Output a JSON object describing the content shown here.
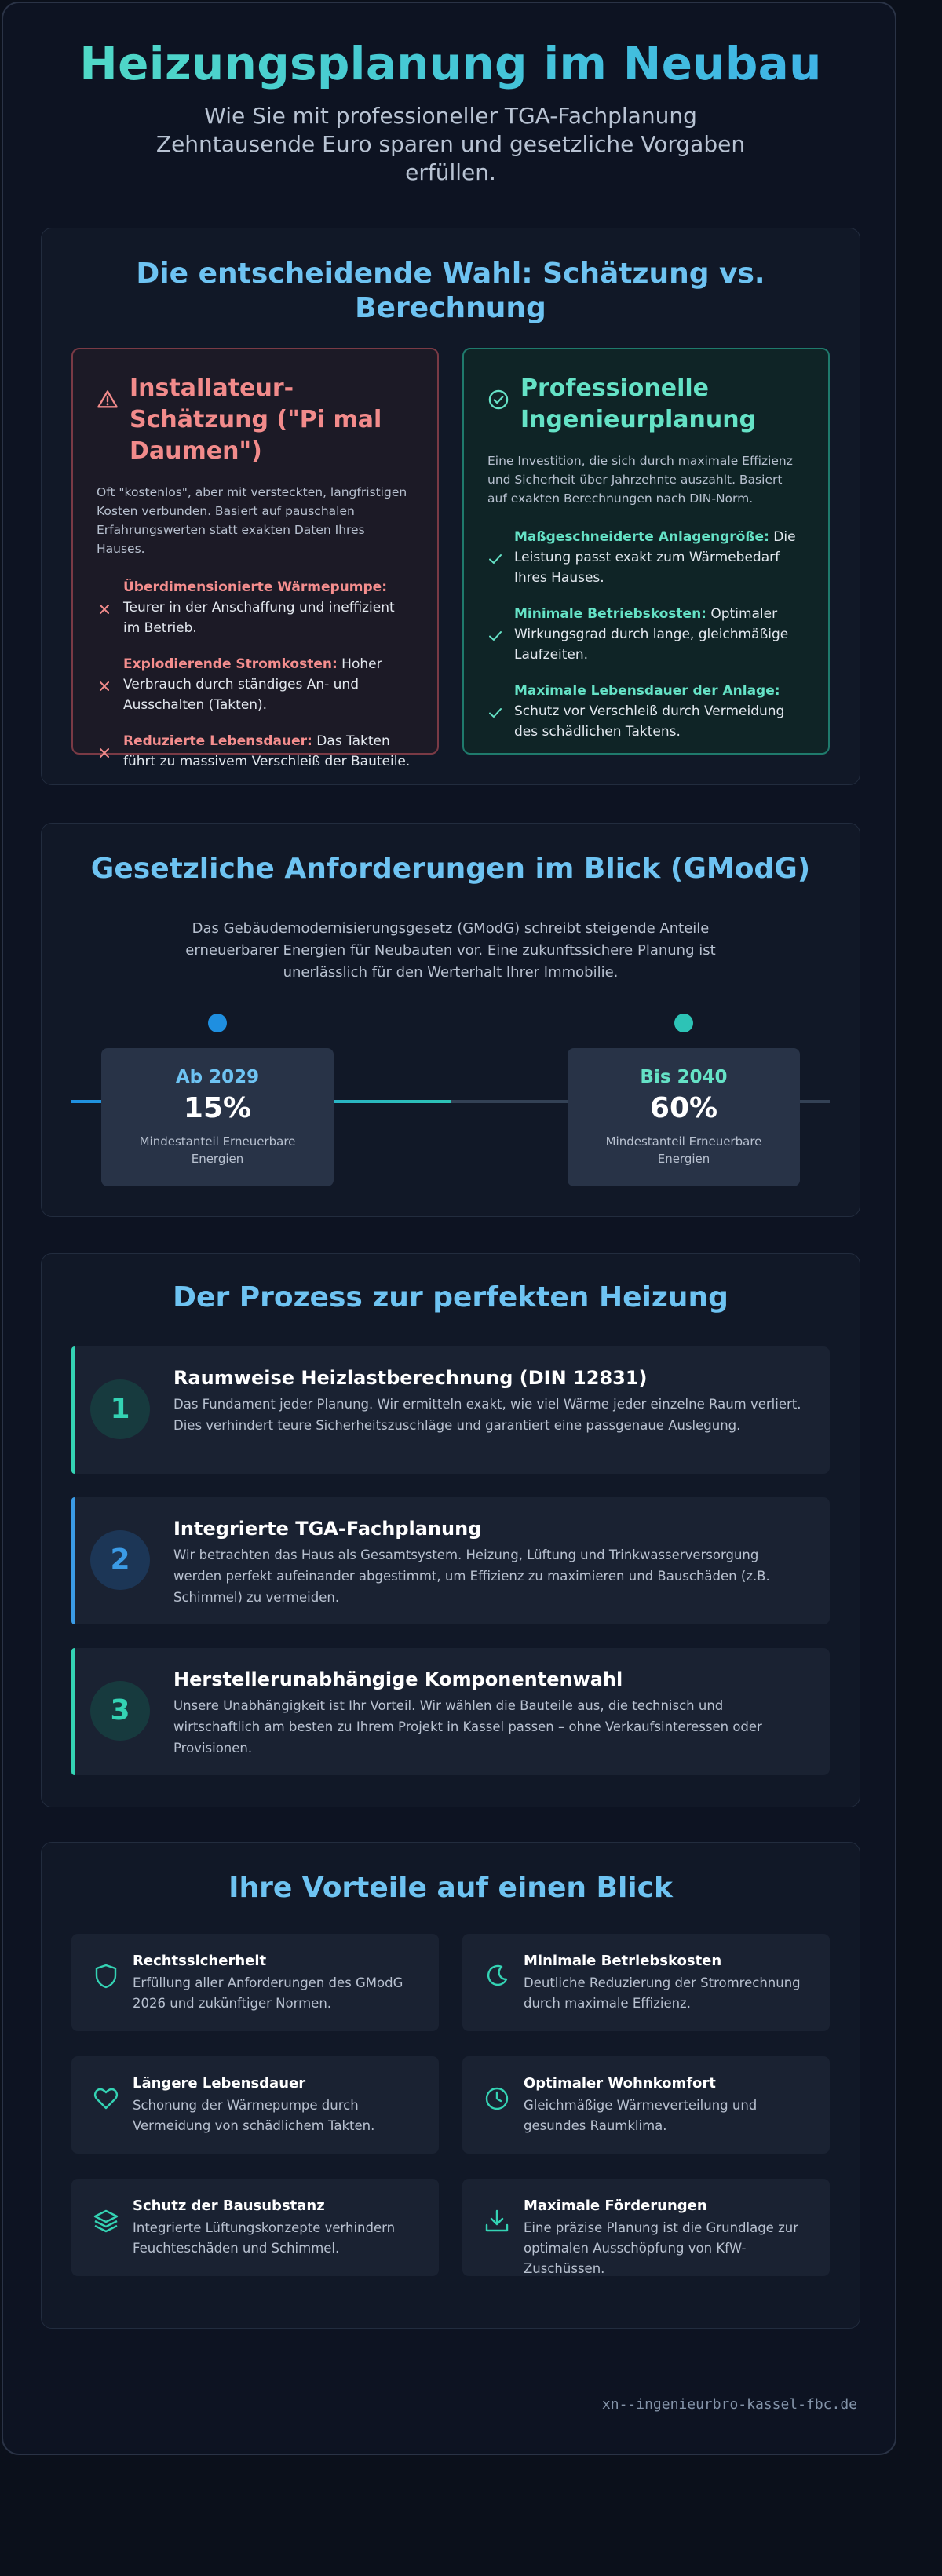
{
  "hero": {
    "title": "Heizungsplanung im Neubau",
    "subtitle": "Wie Sie mit professioneller TGA-Fachplanung Zehntausende Euro sparen und gesetzliche Vorgaben erfüllen."
  },
  "comparison": {
    "title": "Die entscheidende Wahl: Schätzung vs. Berechnung",
    "left": {
      "icon": "warning-icon",
      "heading": "Installateur-Schätzung (\"Pi mal Daumen\")",
      "description": "Oft \"kostenlos\", aber mit versteckten, langfristigen Kosten verbunden. Basiert auf pauschalen Erfahrungswerten statt exakten Daten Ihres Hauses.",
      "items": [
        {
          "bold": "Überdimensionierte Wärmepumpe:",
          "text": " Teurer in der Anschaffung und ineffizient im Betrieb."
        },
        {
          "bold": "Explodierende Stromkosten:",
          "text": " Hoher Verbrauch durch ständiges An- und Ausschalten (Takten)."
        },
        {
          "bold": "Reduzierte Lebensdauer:",
          "text": " Das Takten führt zu massivem Verschleiß der Bauteile."
        }
      ]
    },
    "right": {
      "icon": "check-circle-icon",
      "heading": "Professionelle Ingenieurplanung",
      "description": "Eine Investition, die sich durch maximale Effizienz und Sicherheit über Jahrzehnte auszahlt. Basiert auf exakten Berechnungen nach DIN-Norm.",
      "items": [
        {
          "bold": "Maßgeschneiderte Anlagengröße:",
          "text": " Die Leistung passt exakt zum Wärmebedarf Ihres Hauses."
        },
        {
          "bold": "Minimale Betriebskosten:",
          "text": " Optimaler Wirkungsgrad durch lange, gleichmäßige Laufzeiten."
        },
        {
          "bold": "Maximale Lebensdauer der Anlage:",
          "text": " Schutz vor Verschleiß durch Vermeidung des schädlichen Taktens."
        }
      ]
    }
  },
  "gmodg": {
    "title": "Gesetzliche Anforderungen im Blick (GModG)",
    "intro": "Das Gebäudemodernisierungsgesetz (GModG) schreibt steigende Anteile erneuerbarer Energien für Neubauten vor. Eine zukunftssichere Planung ist unerlässlich für den Werterhalt Ihrer Immobilie.",
    "milestones": [
      {
        "year": "Ab 2029",
        "value": "15%",
        "label": "Mindestanteil Erneuerbare Energien",
        "color": "#6ec3f2",
        "dot": "#1f8fe0"
      },
      {
        "year": "Bis 2040",
        "value": "60%",
        "label": "Mindestanteil Erneuerbare Energien",
        "color": "#65e2c6",
        "dot": "#2dc3b6"
      }
    ],
    "progress": 0.5
  },
  "process": {
    "title": "Der Prozess zur perfekten Heizung",
    "steps": [
      {
        "num": "1",
        "title": "Raumweise Heizlastberechnung (DIN 12831)",
        "text": "Das Fundament jeder Planung. Wir ermitteln exakt, wie viel Wärme jeder einzelne Raum verliert. Dies verhindert teure Sicherheitszuschläge und garantiert eine passgenaue Auslegung.",
        "accent": "#34d3b4"
      },
      {
        "num": "2",
        "title": "Integrierte TGA-Fachplanung",
        "text": "Wir betrachten das Haus als Gesamtsystem. Heizung, Lüftung und Trinkwasserversorgung werden perfekt aufeinander abgestimmt, um Effizienz zu maximieren und Bauschäden (z.B. Schimmel) zu vermeiden.",
        "accent": "#3b9be6"
      },
      {
        "num": "3",
        "title": "Herstellerunabhängige Komponentenwahl",
        "text": "Unsere Unabhängigkeit ist Ihr Vorteil. Wir wählen die Bauteile aus, die technisch und wirtschaftlich am besten zu Ihrem Projekt in Kassel passen – ohne Verkaufsinteressen oder Provisionen.",
        "accent": "#34d3b4"
      }
    ]
  },
  "benefits": {
    "title": "Ihre Vorteile auf einen Blick",
    "items": [
      {
        "icon": "shield-icon",
        "title": "Rechtssicherheit",
        "text": "Erfüllung aller Anforderungen des GModG 2026 und zukünftiger Normen."
      },
      {
        "icon": "moon-icon",
        "title": "Minimale Betriebskosten",
        "text": "Deutliche Reduzierung der Stromrechnung durch maximale Effizienz."
      },
      {
        "icon": "heart-icon",
        "title": "Längere Lebensdauer",
        "text": "Schonung der Wärmepumpe durch Vermeidung von schädlichem Takten."
      },
      {
        "icon": "clock-icon",
        "title": "Optimaler Wohnkomfort",
        "text": "Gleichmäßige Wärmeverteilung und gesundes Raumklima."
      },
      {
        "icon": "layers-icon",
        "title": "Schutz der Bausubstanz",
        "text": "Integrierte Lüftungskonzepte verhindern Feuchteschäden und Schimmel."
      },
      {
        "icon": "download-icon",
        "title": "Maximale Förderungen",
        "text": "Eine präzise Planung ist die Grundlage zur optimalen Ausschöpfung von KfW-Zuschüssen."
      }
    ]
  },
  "footer": {
    "domain": "xn--ingenieurbro-kassel-fbc.de"
  },
  "colors": {
    "accent_teal": "#34d3b4",
    "accent_blue": "#6ec3f2",
    "warn_red": "#f28b8b"
  }
}
